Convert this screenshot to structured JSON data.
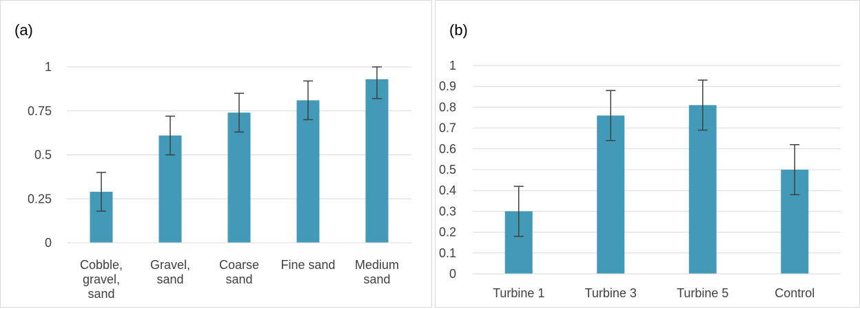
{
  "chart_data": [
    {
      "type": "bar",
      "panel_label": "(a)",
      "categories": [
        [
          "Cobble,",
          "gravel,",
          "sand"
        ],
        [
          "Gravel,",
          "sand"
        ],
        [
          "Coarse",
          "sand"
        ],
        [
          "Fine sand"
        ],
        [
          "Medium",
          "sand"
        ]
      ],
      "values": [
        0.29,
        0.61,
        0.74,
        0.81,
        0.93
      ],
      "error": [
        0.11,
        0.11,
        0.11,
        0.11,
        0.11
      ],
      "ylim": [
        0,
        1
      ],
      "yticks": [
        0,
        0.25,
        0.5,
        0.75,
        1
      ],
      "ytick_labels": [
        "0",
        "0.25",
        "0.5",
        "0.75",
        "1"
      ],
      "grid": true,
      "bar_color": "#4399b8",
      "error_color": "#404040",
      "grid_color": "#d9d9d9"
    },
    {
      "type": "bar",
      "panel_label": "(b)",
      "categories": [
        [
          "Turbine 1"
        ],
        [
          "Turbine 3"
        ],
        [
          "Turbine 5"
        ],
        [
          "Control"
        ]
      ],
      "values": [
        0.3,
        0.76,
        0.81,
        0.5
      ],
      "error": [
        0.12,
        0.12,
        0.12,
        0.12
      ],
      "ylim": [
        0,
        1
      ],
      "yticks": [
        0,
        0.1,
        0.2,
        0.3,
        0.4,
        0.5,
        0.6,
        0.7,
        0.8,
        0.9,
        1
      ],
      "ytick_labels": [
        "0",
        "0.1",
        "0.2",
        "0.3",
        "0.4",
        "0.5",
        "0.6",
        "0.7",
        "0.8",
        "0.9",
        "1"
      ],
      "grid": true,
      "bar_color": "#4399b8",
      "error_color": "#404040",
      "grid_color": "#d9d9d9"
    }
  ]
}
